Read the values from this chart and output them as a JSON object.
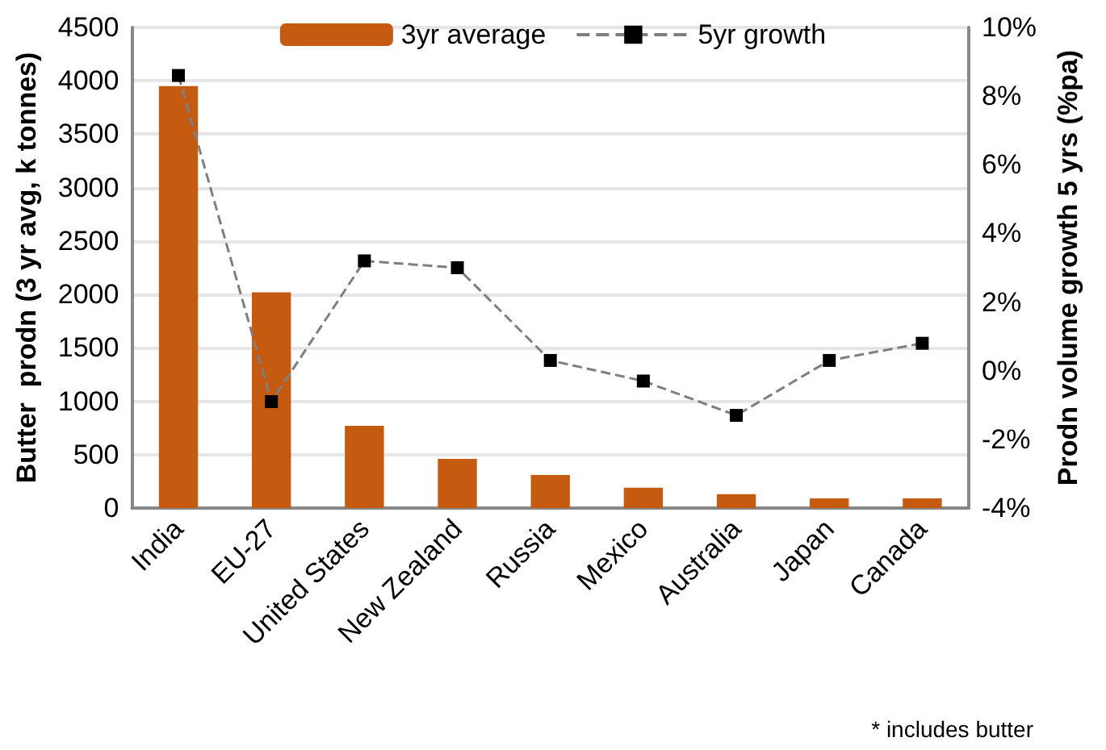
{
  "chart_data": {
    "type": "bar",
    "categories": [
      "India",
      "EU-27",
      "United States",
      "New Zealand",
      "Russia",
      "Mexico",
      "Australia",
      "Japan",
      "Canada"
    ],
    "series": [
      {
        "name": "3yr average",
        "color": "#c55a11",
        "values": [
          3950,
          2020,
          770,
          460,
          310,
          190,
          130,
          90,
          90
        ]
      },
      {
        "name": "5yr growth",
        "type": "line",
        "axis": "y2",
        "color": "#7f7f7f",
        "marker": "square",
        "line_style": "dashed",
        "values": [
          8.6,
          -0.9,
          3.2,
          3.0,
          0.3,
          -0.3,
          -1.3,
          0.3,
          0.8
        ]
      }
    ],
    "ylabel": "Butter  prodn (3 yr avg, k tonnes)",
    "y2label": "Prodn volume growth 5 yrs (%pa)",
    "ylim": [
      0,
      4500
    ],
    "yticks": [
      0,
      500,
      1000,
      1500,
      2000,
      2500,
      3000,
      3500,
      4000,
      4500
    ],
    "y2lim": [
      -4,
      10
    ],
    "y2ticks": [
      {
        "value": -4,
        "label": "-4%"
      },
      {
        "value": -2,
        "label": "-2%"
      },
      {
        "value": 0,
        "label": "0%"
      },
      {
        "value": 2,
        "label": "2%"
      },
      {
        "value": 4,
        "label": "4%"
      },
      {
        "value": 6,
        "label": "6%"
      },
      {
        "value": 8,
        "label": "8%"
      },
      {
        "value": 10,
        "label": "10%"
      }
    ],
    "grid": "y",
    "legend": "top",
    "annotations": [
      "* includes butter"
    ]
  }
}
